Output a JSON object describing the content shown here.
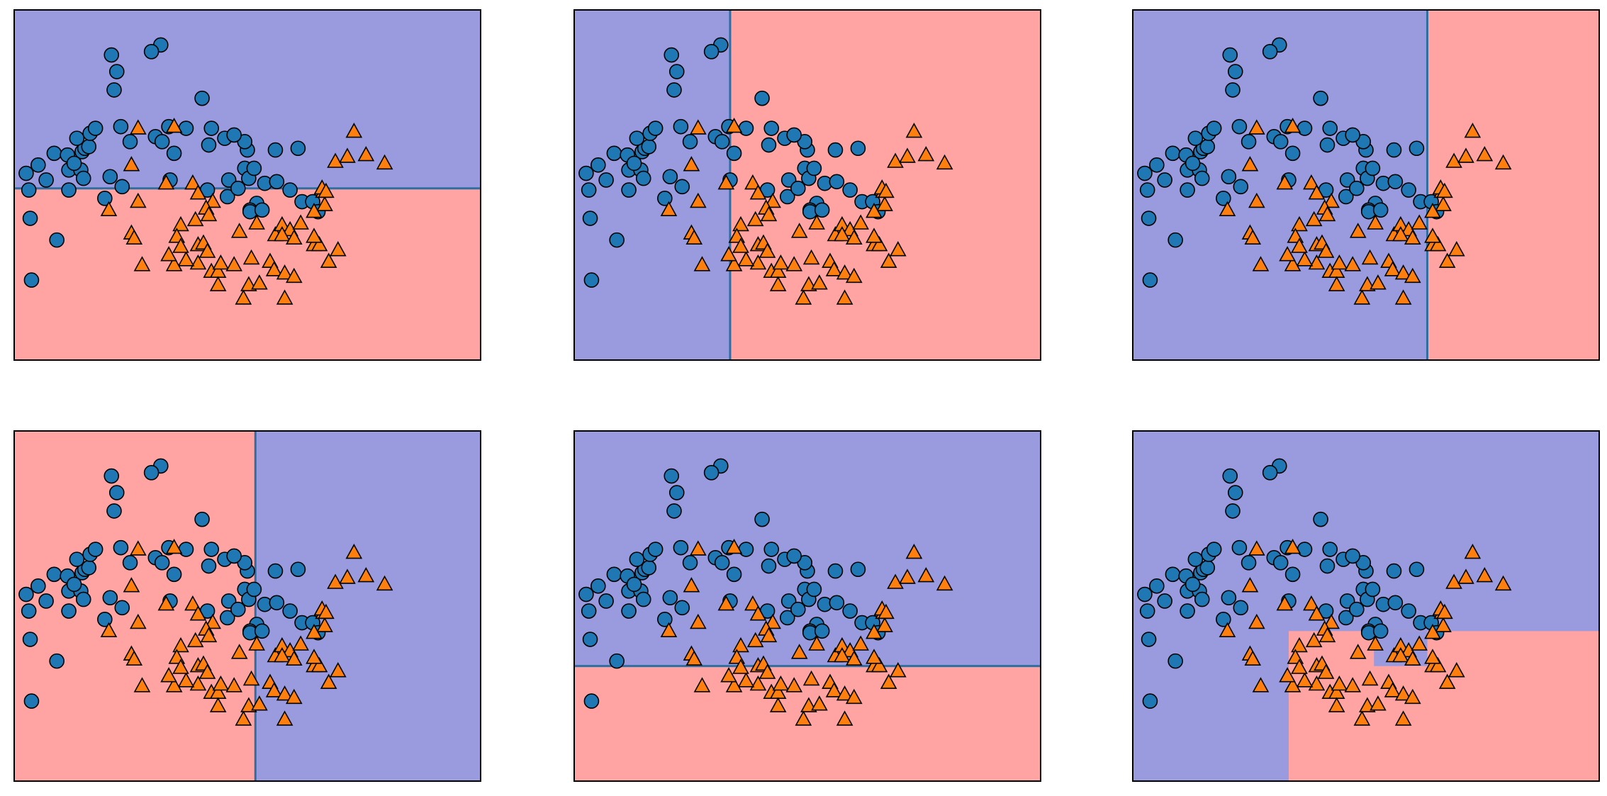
{
  "figure": {
    "colors": {
      "class0_region": "#9a9ade",
      "class1_region": "#ffa3a3",
      "split_line": "#2d6fa3",
      "class0_marker": "#1f77b4",
      "class1_marker": "#ff7f0e",
      "marker_edge": "#000000",
      "frame": "#000000"
    },
    "marker_shapes": {
      "class0": "circle",
      "class1": "triangle"
    }
  },
  "chart_data": [
    {
      "type": "scatter",
      "title": "",
      "xlim": [
        -1.25,
        2.25
      ],
      "ylim": [
        -0.75,
        1.35
      ],
      "regions": [
        {
          "x": [
            -1.25,
            2.25
          ],
          "y": [
            -0.75,
            0.28
          ],
          "class": 1
        },
        {
          "x": [
            -1.25,
            2.25
          ],
          "y": [
            0.28,
            1.35
          ],
          "class": 0
        }
      ],
      "splits": [
        {
          "orient": "h",
          "at": 0.28,
          "from": -1.25,
          "to": 2.25
        }
      ]
    },
    {
      "type": "scatter",
      "title": "",
      "xlim": [
        -1.25,
        2.25
      ],
      "ylim": [
        -0.75,
        1.35
      ],
      "regions": [
        {
          "x": [
            -1.25,
            -0.08
          ],
          "y": [
            -0.75,
            1.35
          ],
          "class": 0
        },
        {
          "x": [
            -0.08,
            2.25
          ],
          "y": [
            -0.75,
            1.35
          ],
          "class": 1
        }
      ],
      "splits": [
        {
          "orient": "v",
          "at": -0.08,
          "from": -0.75,
          "to": 1.35
        }
      ]
    },
    {
      "type": "scatter",
      "title": "",
      "xlim": [
        -1.25,
        2.25
      ],
      "ylim": [
        -0.75,
        1.35
      ],
      "regions": [
        {
          "x": [
            -1.25,
            0.96
          ],
          "y": [
            -0.75,
            1.35
          ],
          "class": 0
        },
        {
          "x": [
            0.96,
            2.25
          ],
          "y": [
            -0.75,
            1.35
          ],
          "class": 1
        }
      ],
      "splits": [
        {
          "orient": "v",
          "at": 0.96,
          "from": -0.75,
          "to": 1.35
        }
      ]
    },
    {
      "type": "scatter",
      "title": "",
      "xlim": [
        -1.25,
        2.25
      ],
      "ylim": [
        -0.75,
        1.35
      ],
      "regions": [
        {
          "x": [
            -1.25,
            0.56
          ],
          "y": [
            -0.75,
            1.35
          ],
          "class": 1
        },
        {
          "x": [
            0.56,
            2.25
          ],
          "y": [
            -0.75,
            1.35
          ],
          "class": 0
        }
      ],
      "splits": [
        {
          "orient": "v",
          "at": 0.56,
          "from": -0.75,
          "to": 1.35
        }
      ]
    },
    {
      "type": "scatter",
      "title": "",
      "xlim": [
        -1.25,
        2.25
      ],
      "ylim": [
        -0.75,
        1.35
      ],
      "regions": [
        {
          "x": [
            -1.25,
            2.25
          ],
          "y": [
            -0.75,
            -0.06
          ],
          "class": 1
        },
        {
          "x": [
            -1.25,
            2.25
          ],
          "y": [
            -0.06,
            1.35
          ],
          "class": 0
        }
      ],
      "splits": [
        {
          "orient": "h",
          "at": -0.06,
          "from": -1.25,
          "to": 2.25
        }
      ]
    },
    {
      "type": "scatter",
      "title": "",
      "xlim": [
        -1.25,
        2.25
      ],
      "ylim": [
        -0.75,
        1.35
      ],
      "regions": [
        {
          "x": [
            -1.25,
            2.25
          ],
          "y": [
            -0.75,
            1.35
          ],
          "class": 0
        },
        {
          "x": [
            -0.08,
            2.25
          ],
          "y": [
            -0.75,
            0.15
          ],
          "class": 1
        },
        {
          "x": [
            0.56,
            0.96
          ],
          "y": [
            -0.06,
            0.15
          ],
          "class": 0
        }
      ],
      "splits": []
    }
  ],
  "points": {
    "class0": [
      [
        -0.52,
        1.08
      ],
      [
        -0.15,
        1.14
      ],
      [
        -0.22,
        1.1
      ],
      [
        -0.48,
        0.98
      ],
      [
        -0.5,
        0.87
      ],
      [
        -1.16,
        0.37
      ],
      [
        -1.07,
        0.42
      ],
      [
        -0.95,
        0.49
      ],
      [
        -0.85,
        0.48
      ],
      [
        -0.74,
        0.5
      ],
      [
        -0.72,
        0.52
      ],
      [
        -0.69,
        0.53
      ],
      [
        -0.68,
        0.61
      ],
      [
        -0.78,
        0.58
      ],
      [
        -0.64,
        0.64
      ],
      [
        -0.45,
        0.65
      ],
      [
        -0.38,
        0.56
      ],
      [
        -0.19,
        0.59
      ],
      [
        -0.09,
        0.65
      ],
      [
        0.04,
        0.64
      ],
      [
        0.16,
        0.82
      ],
      [
        0.23,
        0.64
      ],
      [
        0.33,
        0.58
      ],
      [
        0.5,
        0.51
      ],
      [
        0.48,
        0.56
      ],
      [
        0.21,
        0.54
      ],
      [
        -0.14,
        0.56
      ],
      [
        -0.05,
        0.49
      ],
      [
        0.48,
        0.4
      ],
      [
        0.36,
        0.33
      ],
      [
        0.2,
        0.27
      ],
      [
        0.35,
        0.23
      ],
      [
        0.51,
        0.34
      ],
      [
        0.63,
        0.31
      ],
      [
        -0.08,
        0.33
      ],
      [
        -1.14,
        0.27
      ],
      [
        -1.13,
        0.1
      ],
      [
        -0.84,
        0.39
      ],
      [
        -0.75,
        0.39
      ],
      [
        -0.73,
        0.34
      ],
      [
        -1.01,
        0.33
      ],
      [
        -0.84,
        0.27
      ],
      [
        -0.8,
        0.43
      ],
      [
        -0.53,
        0.35
      ],
      [
        -0.44,
        0.29
      ],
      [
        -0.93,
        -0.03
      ],
      [
        -1.12,
        -0.27
      ],
      [
        0.57,
        0.19
      ],
      [
        0.52,
        0.15
      ],
      [
        0.52,
        0.14
      ],
      [
        0.61,
        0.15
      ],
      [
        0.82,
        0.27
      ],
      [
        0.91,
        0.2
      ],
      [
        0.99,
        0.2
      ],
      [
        1.03,
        0.14
      ],
      [
        -0.57,
        0.22
      ],
      [
        0.43,
        0.28
      ],
      [
        0.55,
        0.4
      ],
      [
        0.72,
        0.32
      ],
      [
        0.88,
        0.52
      ],
      [
        0.71,
        0.51
      ],
      [
        0.4,
        0.6
      ]
    ],
    "class1": [
      [
        -0.32,
        0.64
      ],
      [
        -0.05,
        0.65
      ],
      [
        -0.37,
        0.42
      ],
      [
        -0.11,
        0.31
      ],
      [
        0.09,
        0.31
      ],
      [
        -0.32,
        0.2
      ],
      [
        0.13,
        0.25
      ],
      [
        0.24,
        0.2
      ],
      [
        0.19,
        0.16
      ],
      [
        0.11,
        0.09
      ],
      [
        0.21,
        0.12
      ],
      [
        0.13,
        -0.06
      ],
      [
        -0.54,
        0.15
      ],
      [
        -0.37,
        0.01
      ],
      [
        -0.35,
        -0.02
      ],
      [
        0.0,
        0.06
      ],
      [
        -0.03,
        -0.01
      ],
      [
        0.17,
        -0.05
      ],
      [
        0.2,
        -0.1
      ],
      [
        0.13,
        -0.17
      ],
      [
        0.04,
        -0.15
      ],
      [
        -0.29,
        -0.18
      ],
      [
        -0.05,
        -0.18
      ],
      [
        -0.09,
        -0.12
      ],
      [
        0.0,
        -0.07
      ],
      [
        0.23,
        -0.22
      ],
      [
        0.28,
        -0.22
      ],
      [
        0.3,
        -0.17
      ],
      [
        0.57,
        0.07
      ],
      [
        0.44,
        0.02
      ],
      [
        0.71,
        0.0
      ],
      [
        0.76,
        0.06
      ],
      [
        0.82,
        0.03
      ],
      [
        0.76,
        0.0
      ],
      [
        0.85,
        -0.02
      ],
      [
        1.0,
        -0.06
      ],
      [
        1.04,
        -0.06
      ],
      [
        1.18,
        -0.09
      ],
      [
        0.53,
        -0.14
      ],
      [
        0.67,
        -0.16
      ],
      [
        0.7,
        -0.21
      ],
      [
        0.78,
        -0.23
      ],
      [
        0.28,
        -0.3
      ],
      [
        0.51,
        -0.3
      ],
      [
        0.59,
        -0.29
      ],
      [
        0.4,
        -0.18
      ],
      [
        0.47,
        -0.38
      ],
      [
        0.78,
        -0.38
      ],
      [
        0.85,
        -0.25
      ],
      [
        1.08,
        0.18
      ],
      [
        1.07,
        0.26
      ],
      [
        1.06,
        0.28
      ],
      [
        1.09,
        0.26
      ],
      [
        1.16,
        0.44
      ],
      [
        1.25,
        0.47
      ],
      [
        1.39,
        0.48
      ],
      [
        1.53,
        0.43
      ],
      [
        1.3,
        0.62
      ],
      [
        1.0,
        0.14
      ],
      [
        0.9,
        0.07
      ],
      [
        1.0,
        -0.01
      ],
      [
        1.11,
        -0.16
      ]
    ]
  }
}
